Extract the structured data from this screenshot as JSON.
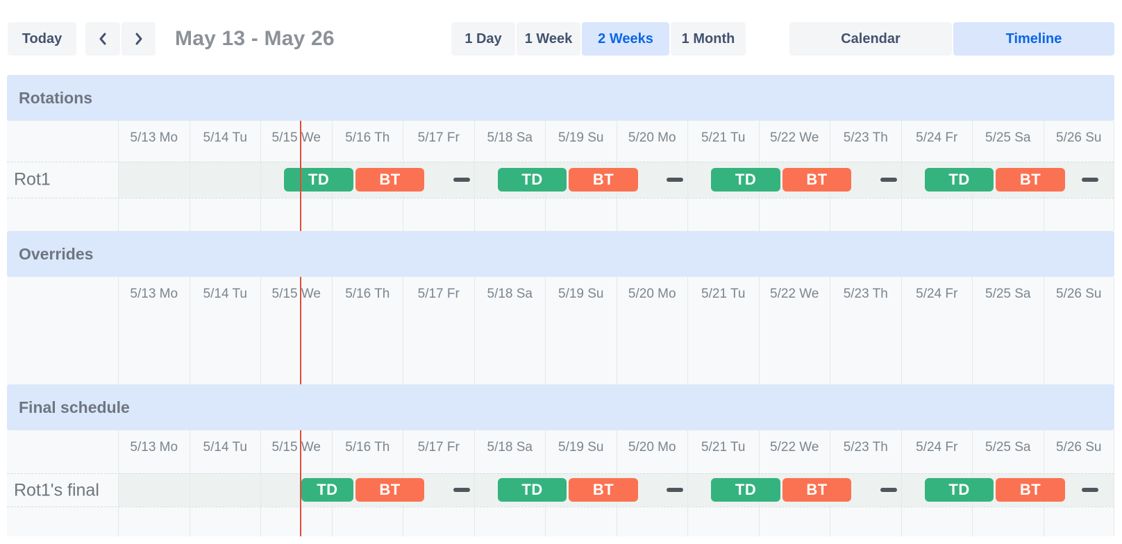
{
  "toolbar": {
    "today_label": "Today",
    "prev_icon": "chevron-left",
    "next_icon": "chevron-right",
    "date_range": "May 13 - May 26",
    "zoom_options": [
      {
        "label": "1 Day",
        "active": false
      },
      {
        "label": "1 Week",
        "active": false
      },
      {
        "label": "2 Weeks",
        "active": true
      },
      {
        "label": "1 Month",
        "active": false
      }
    ],
    "view_options": [
      {
        "label": "Calendar",
        "active": false
      },
      {
        "label": "Timeline",
        "active": true
      }
    ]
  },
  "dates": [
    "5/13 Mo",
    "5/14 Tu",
    "5/15 We",
    "5/16 Th",
    "5/17 Fr",
    "5/18 Sa",
    "5/19 Su",
    "5/20 Mo",
    "5/21 Tu",
    "5/22 We",
    "5/23 Th",
    "5/24 Fr",
    "5/25 Sa",
    "5/26 Su"
  ],
  "now_marker": {
    "day": 2.566
  },
  "colors": {
    "td_shift": "#35b37e",
    "bt_shift": "#fb7252",
    "active_bg": "#d9e6fc",
    "active_text": "#0c66e4",
    "now_line": "#e24b38",
    "band_bg": "#dbe7fa"
  },
  "sections": [
    {
      "title": "Rotations",
      "rows": [
        {
          "label": "Rot1",
          "shifts": [
            {
              "type": "TD",
              "start": 2.325,
              "end": 3.325
            },
            {
              "type": "BT",
              "start": 3.325,
              "end": 4.325
            },
            {
              "type": "off",
              "start": 4.325,
              "end": 5.325
            },
            {
              "type": "TD",
              "start": 5.325,
              "end": 6.325
            },
            {
              "type": "BT",
              "start": 6.325,
              "end": 7.325
            },
            {
              "type": "off",
              "start": 7.325,
              "end": 8.325
            },
            {
              "type": "TD",
              "start": 8.325,
              "end": 9.325
            },
            {
              "type": "BT",
              "start": 9.325,
              "end": 10.325
            },
            {
              "type": "off",
              "start": 10.325,
              "end": 11.325
            },
            {
              "type": "TD",
              "start": 11.325,
              "end": 12.325
            },
            {
              "type": "BT",
              "start": 12.325,
              "end": 13.325
            },
            {
              "type": "off",
              "start": 13.325,
              "end": 14
            }
          ]
        }
      ]
    },
    {
      "title": "Overrides",
      "rows": []
    },
    {
      "title": "Final schedule",
      "rows": [
        {
          "label": "Rot1's final",
          "shifts": [
            {
              "type": "TD",
              "start": 2.566,
              "end": 3.325
            },
            {
              "type": "BT",
              "start": 3.325,
              "end": 4.325
            },
            {
              "type": "off",
              "start": 4.325,
              "end": 5.325
            },
            {
              "type": "TD",
              "start": 5.325,
              "end": 6.325
            },
            {
              "type": "BT",
              "start": 6.325,
              "end": 7.325
            },
            {
              "type": "off",
              "start": 7.325,
              "end": 8.325
            },
            {
              "type": "TD",
              "start": 8.325,
              "end": 9.325
            },
            {
              "type": "BT",
              "start": 9.325,
              "end": 10.325
            },
            {
              "type": "off",
              "start": 10.325,
              "end": 11.325
            },
            {
              "type": "TD",
              "start": 11.325,
              "end": 12.325
            },
            {
              "type": "BT",
              "start": 12.325,
              "end": 13.325
            },
            {
              "type": "off",
              "start": 13.325,
              "end": 14
            }
          ]
        }
      ]
    }
  ]
}
